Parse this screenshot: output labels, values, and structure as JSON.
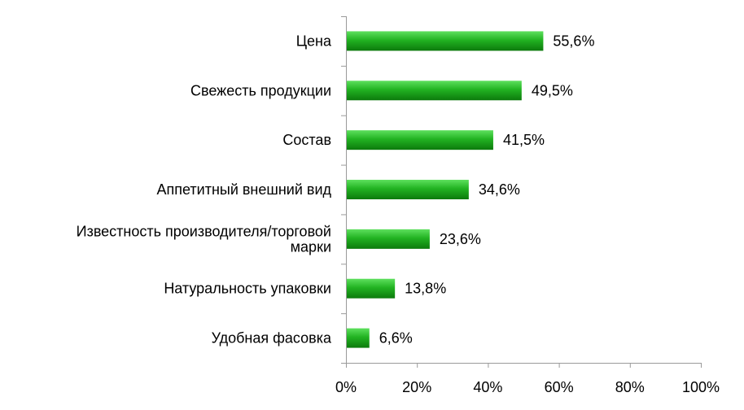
{
  "chart_data": {
    "type": "bar",
    "orientation": "horizontal",
    "categories": [
      [
        "Цена"
      ],
      [
        "Свежесть продукции"
      ],
      [
        "Состав"
      ],
      [
        "Аппетитный внешний вид"
      ],
      [
        "Известность производителя/торговой",
        "марки"
      ],
      [
        "Натуральность упаковки"
      ],
      [
        "Удобная фасовка"
      ]
    ],
    "values": [
      55.6,
      49.5,
      41.5,
      34.6,
      23.6,
      13.8,
      6.6
    ],
    "value_labels": [
      "55,6%",
      "49,5%",
      "41,5%",
      "34,6%",
      "23,6%",
      "13,8%",
      "6,6%"
    ],
    "xlim": [
      0,
      100
    ],
    "x_ticks": [
      0,
      20,
      40,
      60,
      80,
      100
    ],
    "x_tick_labels": [
      "0%",
      "20%",
      "40%",
      "60%",
      "80%",
      "100%"
    ],
    "grid": false,
    "legend": "none",
    "colors": {
      "bar_top": "#5ee05e",
      "bar_mid": "#22b322",
      "bar_bottom": "#0c7a0c",
      "axis": "#9a9a9a"
    }
  }
}
